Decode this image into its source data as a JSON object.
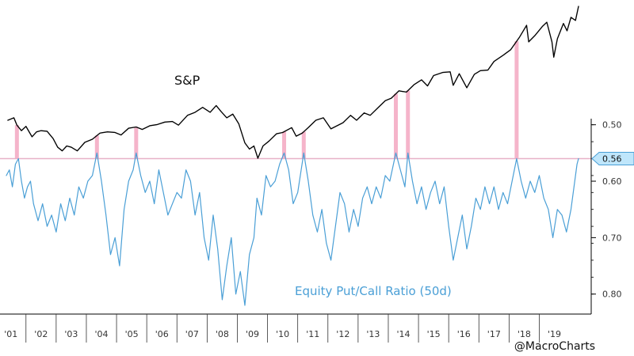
{
  "chart_data": {
    "type": "line",
    "x_start_year": 2000.85,
    "x_end_year": 2019.8,
    "right_axis": {
      "ticks": [
        0.5,
        0.6,
        0.7,
        0.8
      ],
      "tick_labels": [
        "0.50",
        "0.60",
        "0.70",
        "0.80"
      ],
      "range": [
        0.464,
        0.82
      ],
      "inverted": true
    },
    "x_axis": {
      "year_labels": [
        "'01",
        "'02",
        "'03",
        "'04",
        "'05",
        "'06",
        "'07",
        "'08",
        "'09",
        "'10",
        "'11",
        "'12",
        "'13",
        "'14",
        "'15",
        "'16",
        "'17",
        "'18",
        "'19"
      ]
    },
    "threshold": {
      "value": 0.56,
      "label": "0.56"
    },
    "current_value": {
      "value": 0.56,
      "label": "0.56"
    },
    "highlight_years": [
      2001.2,
      2003.85,
      2005.15,
      2010.05,
      2010.7,
      2013.75,
      2014.15,
      2017.75
    ],
    "series": [
      {
        "name": "S&P",
        "color": "#000000",
        "axis": "none",
        "points": [
          [
            2000.9,
            1320
          ],
          [
            2001.1,
            1360
          ],
          [
            2001.2,
            1240
          ],
          [
            2001.35,
            1150
          ],
          [
            2001.5,
            1220
          ],
          [
            2001.7,
            1050
          ],
          [
            2001.85,
            1130
          ],
          [
            2002.0,
            1150
          ],
          [
            2002.2,
            1140
          ],
          [
            2002.4,
            1020
          ],
          [
            2002.55,
            880
          ],
          [
            2002.7,
            820
          ],
          [
            2002.85,
            900
          ],
          [
            2003.0,
            880
          ],
          [
            2003.2,
            820
          ],
          [
            2003.45,
            960
          ],
          [
            2003.7,
            1010
          ],
          [
            2003.95,
            1110
          ],
          [
            2004.2,
            1130
          ],
          [
            2004.45,
            1120
          ],
          [
            2004.65,
            1080
          ],
          [
            2004.9,
            1190
          ],
          [
            2005.15,
            1210
          ],
          [
            2005.35,
            1170
          ],
          [
            2005.6,
            1230
          ],
          [
            2005.85,
            1250
          ],
          [
            2006.1,
            1290
          ],
          [
            2006.35,
            1300
          ],
          [
            2006.55,
            1240
          ],
          [
            2006.85,
            1400
          ],
          [
            2007.1,
            1450
          ],
          [
            2007.35,
            1530
          ],
          [
            2007.6,
            1450
          ],
          [
            2007.8,
            1560
          ],
          [
            2007.95,
            1470
          ],
          [
            2008.15,
            1360
          ],
          [
            2008.35,
            1420
          ],
          [
            2008.55,
            1260
          ],
          [
            2008.75,
            950
          ],
          [
            2008.9,
            850
          ],
          [
            2009.05,
            900
          ],
          [
            2009.18,
            700
          ],
          [
            2009.35,
            900
          ],
          [
            2009.55,
            980
          ],
          [
            2009.8,
            1100
          ],
          [
            2010.0,
            1120
          ],
          [
            2010.3,
            1200
          ],
          [
            2010.45,
            1060
          ],
          [
            2010.65,
            1110
          ],
          [
            2010.85,
            1200
          ],
          [
            2011.1,
            1320
          ],
          [
            2011.35,
            1360
          ],
          [
            2011.6,
            1180
          ],
          [
            2011.8,
            1230
          ],
          [
            2012.0,
            1280
          ],
          [
            2012.25,
            1400
          ],
          [
            2012.45,
            1320
          ],
          [
            2012.7,
            1440
          ],
          [
            2012.9,
            1400
          ],
          [
            2013.15,
            1520
          ],
          [
            2013.4,
            1640
          ],
          [
            2013.6,
            1680
          ],
          [
            2013.85,
            1800
          ],
          [
            2014.1,
            1780
          ],
          [
            2014.35,
            1900
          ],
          [
            2014.6,
            1980
          ],
          [
            2014.8,
            1880
          ],
          [
            2015.0,
            2050
          ],
          [
            2015.3,
            2100
          ],
          [
            2015.55,
            2110
          ],
          [
            2015.65,
            1890
          ],
          [
            2015.85,
            2080
          ],
          [
            2016.1,
            1850
          ],
          [
            2016.35,
            2070
          ],
          [
            2016.55,
            2130
          ],
          [
            2016.8,
            2140
          ],
          [
            2017.0,
            2280
          ],
          [
            2017.3,
            2380
          ],
          [
            2017.55,
            2470
          ],
          [
            2017.85,
            2680
          ],
          [
            2018.08,
            2870
          ],
          [
            2018.15,
            2600
          ],
          [
            2018.35,
            2700
          ],
          [
            2018.6,
            2850
          ],
          [
            2018.75,
            2920
          ],
          [
            2018.92,
            2600
          ],
          [
            2018.98,
            2350
          ],
          [
            2019.1,
            2650
          ],
          [
            2019.3,
            2900
          ],
          [
            2019.42,
            2780
          ],
          [
            2019.55,
            3000
          ],
          [
            2019.7,
            2950
          ],
          [
            2019.8,
            3180
          ]
        ]
      },
      {
        "name": "Equity Put/Call Ratio (50d)",
        "color": "#4a9fd6",
        "axis": "right",
        "points": [
          [
            2000.85,
            0.59
          ],
          [
            2000.95,
            0.58
          ],
          [
            2001.05,
            0.61
          ],
          [
            2001.15,
            0.57
          ],
          [
            2001.25,
            0.56
          ],
          [
            2001.35,
            0.6
          ],
          [
            2001.45,
            0.63
          ],
          [
            2001.55,
            0.61
          ],
          [
            2001.65,
            0.6
          ],
          [
            2001.75,
            0.64
          ],
          [
            2001.9,
            0.67
          ],
          [
            2002.05,
            0.64
          ],
          [
            2002.2,
            0.68
          ],
          [
            2002.35,
            0.66
          ],
          [
            2002.5,
            0.69
          ],
          [
            2002.65,
            0.64
          ],
          [
            2002.8,
            0.67
          ],
          [
            2002.95,
            0.63
          ],
          [
            2003.1,
            0.66
          ],
          [
            2003.25,
            0.61
          ],
          [
            2003.4,
            0.63
          ],
          [
            2003.55,
            0.6
          ],
          [
            2003.7,
            0.59
          ],
          [
            2003.85,
            0.55
          ],
          [
            2004.0,
            0.6
          ],
          [
            2004.15,
            0.66
          ],
          [
            2004.3,
            0.73
          ],
          [
            2004.45,
            0.7
          ],
          [
            2004.6,
            0.75
          ],
          [
            2004.75,
            0.65
          ],
          [
            2004.9,
            0.6
          ],
          [
            2005.05,
            0.58
          ],
          [
            2005.15,
            0.55
          ],
          [
            2005.3,
            0.59
          ],
          [
            2005.45,
            0.62
          ],
          [
            2005.6,
            0.6
          ],
          [
            2005.75,
            0.64
          ],
          [
            2005.9,
            0.58
          ],
          [
            2006.05,
            0.62
          ],
          [
            2006.2,
            0.66
          ],
          [
            2006.35,
            0.64
          ],
          [
            2006.5,
            0.62
          ],
          [
            2006.65,
            0.63
          ],
          [
            2006.8,
            0.58
          ],
          [
            2006.95,
            0.6
          ],
          [
            2007.1,
            0.66
          ],
          [
            2007.25,
            0.62
          ],
          [
            2007.4,
            0.7
          ],
          [
            2007.55,
            0.74
          ],
          [
            2007.7,
            0.66
          ],
          [
            2007.85,
            0.72
          ],
          [
            2008.0,
            0.81
          ],
          [
            2008.15,
            0.75
          ],
          [
            2008.3,
            0.7
          ],
          [
            2008.45,
            0.8
          ],
          [
            2008.6,
            0.76
          ],
          [
            2008.75,
            0.82
          ],
          [
            2008.9,
            0.73
          ],
          [
            2009.05,
            0.7
          ],
          [
            2009.15,
            0.63
          ],
          [
            2009.3,
            0.66
          ],
          [
            2009.45,
            0.59
          ],
          [
            2009.6,
            0.61
          ],
          [
            2009.75,
            0.6
          ],
          [
            2009.9,
            0.57
          ],
          [
            2010.05,
            0.55
          ],
          [
            2010.2,
            0.58
          ],
          [
            2010.35,
            0.64
          ],
          [
            2010.5,
            0.62
          ],
          [
            2010.7,
            0.55
          ],
          [
            2010.85,
            0.6
          ],
          [
            2011.0,
            0.66
          ],
          [
            2011.15,
            0.69
          ],
          [
            2011.3,
            0.65
          ],
          [
            2011.45,
            0.71
          ],
          [
            2011.6,
            0.74
          ],
          [
            2011.75,
            0.68
          ],
          [
            2011.9,
            0.62
          ],
          [
            2012.05,
            0.64
          ],
          [
            2012.2,
            0.69
          ],
          [
            2012.35,
            0.65
          ],
          [
            2012.5,
            0.68
          ],
          [
            2012.65,
            0.63
          ],
          [
            2012.8,
            0.61
          ],
          [
            2012.95,
            0.64
          ],
          [
            2013.1,
            0.61
          ],
          [
            2013.25,
            0.63
          ],
          [
            2013.4,
            0.59
          ],
          [
            2013.55,
            0.6
          ],
          [
            2013.75,
            0.55
          ],
          [
            2013.9,
            0.58
          ],
          [
            2014.05,
            0.61
          ],
          [
            2014.15,
            0.55
          ],
          [
            2014.3,
            0.6
          ],
          [
            2014.45,
            0.64
          ],
          [
            2014.6,
            0.61
          ],
          [
            2014.75,
            0.65
          ],
          [
            2014.9,
            0.62
          ],
          [
            2015.05,
            0.6
          ],
          [
            2015.2,
            0.64
          ],
          [
            2015.35,
            0.61
          ],
          [
            2015.5,
            0.68
          ],
          [
            2015.65,
            0.74
          ],
          [
            2015.8,
            0.7
          ],
          [
            2015.95,
            0.66
          ],
          [
            2016.1,
            0.72
          ],
          [
            2016.25,
            0.68
          ],
          [
            2016.4,
            0.63
          ],
          [
            2016.55,
            0.65
          ],
          [
            2016.7,
            0.61
          ],
          [
            2016.85,
            0.64
          ],
          [
            2017.0,
            0.61
          ],
          [
            2017.15,
            0.65
          ],
          [
            2017.3,
            0.62
          ],
          [
            2017.45,
            0.64
          ],
          [
            2017.6,
            0.6
          ],
          [
            2017.75,
            0.56
          ],
          [
            2017.9,
            0.6
          ],
          [
            2018.05,
            0.63
          ],
          [
            2018.2,
            0.6
          ],
          [
            2018.35,
            0.62
          ],
          [
            2018.5,
            0.59
          ],
          [
            2018.65,
            0.63
          ],
          [
            2018.8,
            0.65
          ],
          [
            2018.95,
            0.7
          ],
          [
            2019.1,
            0.65
          ],
          [
            2019.25,
            0.66
          ],
          [
            2019.4,
            0.69
          ],
          [
            2019.55,
            0.65
          ],
          [
            2019.65,
            0.61
          ],
          [
            2019.75,
            0.57
          ],
          [
            2019.8,
            0.56
          ]
        ]
      }
    ],
    "annotations": [
      {
        "text": "S&P"
      },
      {
        "text": "Equity Put/Call Ratio (50d)"
      }
    ]
  },
  "watermark": "@MacroCharts",
  "colors": {
    "sp_line": "#000000",
    "pc_line": "#4a9fd6",
    "threshold": "#e7b1c7",
    "highlight": "#f3a7c1",
    "axis": "#000000",
    "current_value_box": "#bfe6fb",
    "current_value_border": "#4a9fd6"
  }
}
